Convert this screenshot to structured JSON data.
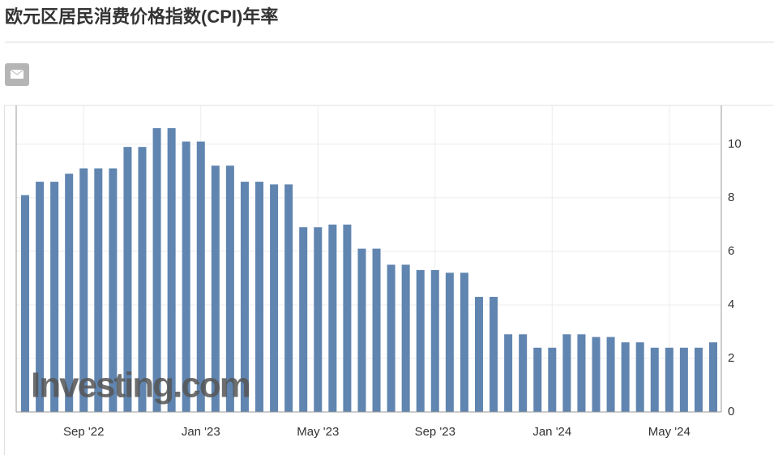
{
  "chart_data": {
    "type": "bar",
    "title": "欧元区居民消费价格指数(CPI)年率",
    "watermark": "Investing.com",
    "categories": [
      null,
      null,
      null,
      null,
      "Sep '22",
      null,
      null,
      null,
      null,
      null,
      null,
      null,
      "Jan '23",
      null,
      null,
      null,
      null,
      null,
      null,
      null,
      "May '23",
      null,
      null,
      null,
      null,
      null,
      null,
      null,
      "Sep '23",
      null,
      null,
      null,
      null,
      null,
      null,
      null,
      "Jan '24",
      null,
      null,
      null,
      null,
      null,
      null,
      null,
      "May '24",
      null,
      null,
      null
    ],
    "values": [
      8.1,
      8.6,
      8.6,
      8.9,
      9.1,
      9.1,
      9.1,
      9.9,
      9.9,
      10.6,
      10.6,
      10.1,
      10.1,
      9.2,
      9.2,
      8.6,
      8.6,
      8.5,
      8.5,
      6.9,
      6.9,
      7.0,
      7.0,
      6.1,
      6.1,
      5.5,
      5.5,
      5.3,
      5.3,
      5.2,
      5.2,
      4.3,
      4.3,
      2.9,
      2.9,
      2.4,
      2.4,
      2.9,
      2.9,
      2.8,
      2.8,
      2.6,
      2.6,
      2.4,
      2.4,
      2.4,
      2.4,
      2.6
    ],
    "color": "#6085b0",
    "ylim": [
      0,
      11.45
    ],
    "yticks": [
      0,
      2,
      4,
      6,
      8,
      10
    ],
    "grid": true
  }
}
